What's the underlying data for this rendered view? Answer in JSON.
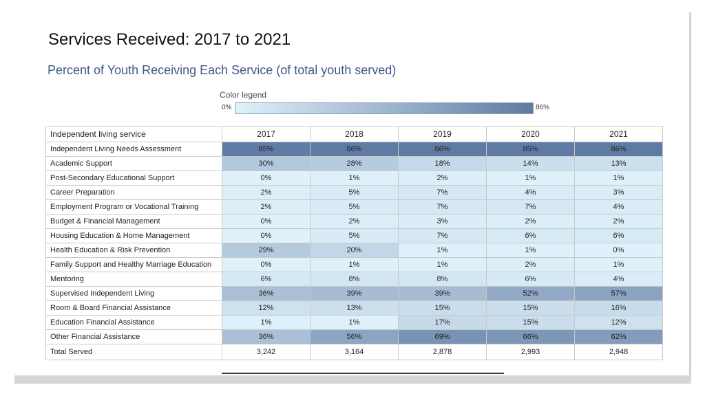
{
  "title": "Services Received: 2017 to 2021",
  "subtitle": "Percent of Youth Receiving Each Service (of total youth served)",
  "legend": {
    "label": "Color legend",
    "min_label": "0%",
    "max_label": "86%",
    "min_value": 0,
    "max_value": 86,
    "min_color": "#dff2fb",
    "max_color": "#5f7ba3"
  },
  "chart_data": {
    "type": "heatmap",
    "title": "Services Received: 2017 to 2021",
    "subtitle": "Percent of Youth Receiving Each Service (of total youth served)",
    "row_header": "Independent living service",
    "columns": [
      "2017",
      "2018",
      "2019",
      "2020",
      "2021"
    ],
    "rows": [
      {
        "label": "Independent Living Needs Assessment",
        "values": [
          85,
          86,
          86,
          85,
          86
        ]
      },
      {
        "label": "Academic Support",
        "values": [
          30,
          28,
          18,
          14,
          13
        ]
      },
      {
        "label": "Post-Secondary Educational Support",
        "values": [
          0,
          1,
          2,
          1,
          1
        ]
      },
      {
        "label": "Career Preparation",
        "values": [
          2,
          5,
          7,
          4,
          3
        ]
      },
      {
        "label": "Employment Program or Vocational Training",
        "values": [
          2,
          5,
          7,
          7,
          4
        ]
      },
      {
        "label": "Budget & Financial Management",
        "values": [
          0,
          2,
          3,
          2,
          2
        ]
      },
      {
        "label": "Housing Education & Home Management",
        "values": [
          0,
          5,
          7,
          6,
          6
        ]
      },
      {
        "label": "Health Education & Risk Prevention",
        "values": [
          29,
          20,
          1,
          1,
          0
        ]
      },
      {
        "label": "Family Support and Healthy Marriage Education",
        "values": [
          0,
          1,
          1,
          2,
          1
        ]
      },
      {
        "label": "Mentoring",
        "values": [
          6,
          8,
          8,
          6,
          4
        ]
      },
      {
        "label": "Supervised Independent Living",
        "values": [
          36,
          39,
          39,
          52,
          57
        ]
      },
      {
        "label": "Room & Board Financial Assistance",
        "values": [
          12,
          13,
          15,
          15,
          16
        ]
      },
      {
        "label": "Education Financial Assistance",
        "values": [
          1,
          1,
          17,
          15,
          12
        ]
      },
      {
        "label": "Other Financial Assistance",
        "values": [
          36,
          56,
          69,
          66,
          62
        ]
      }
    ],
    "total_row": {
      "label": "Total Served",
      "values": [
        "3,242",
        "3,164",
        "2,878",
        "2,993",
        "2,948"
      ]
    },
    "value_suffix": "%"
  }
}
